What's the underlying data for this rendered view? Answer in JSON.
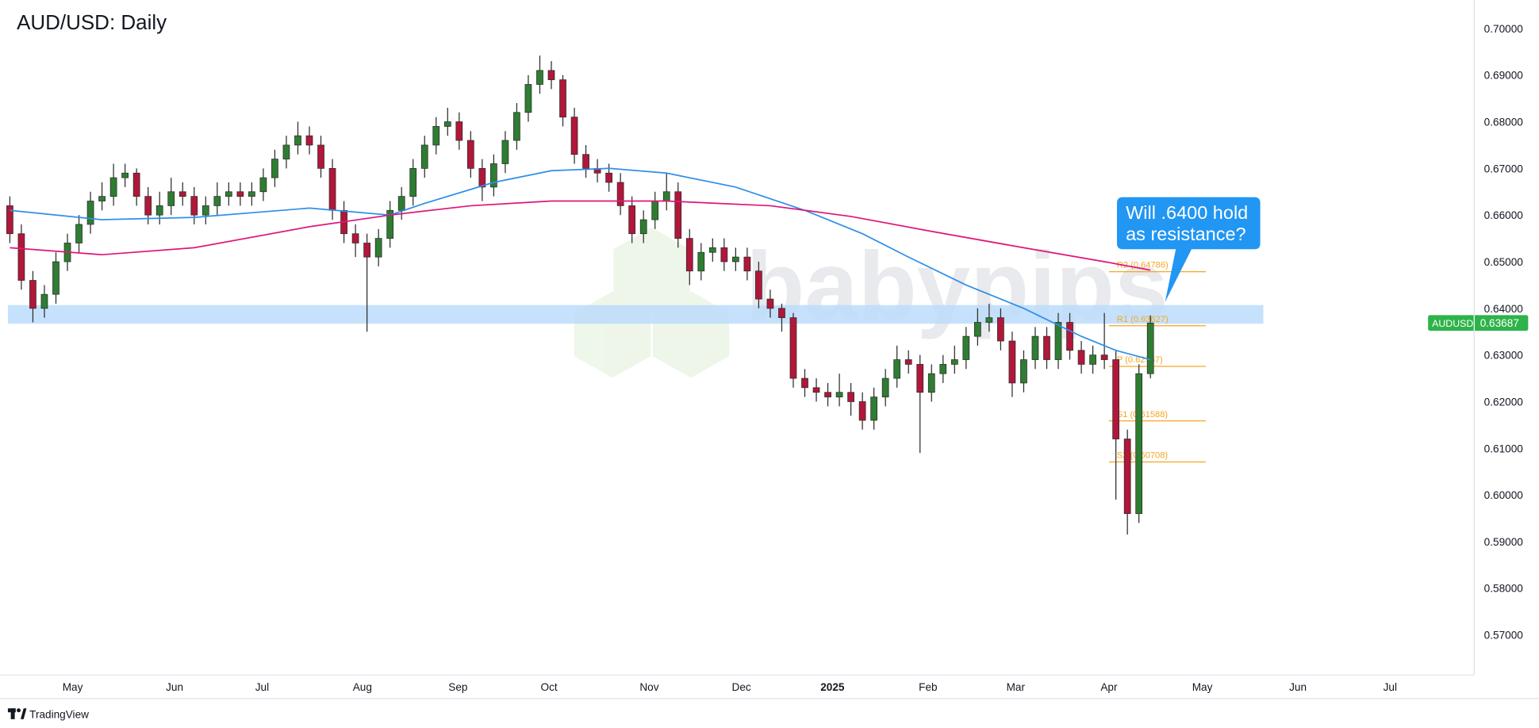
{
  "chart_data": {
    "type": "candlestick",
    "title": "AUD/USD: Daily",
    "colors": {
      "up": "#2e7d32",
      "down": "#b0173a",
      "wick": "#2b2b2b"
    },
    "open": [
      0.662,
      0.656,
      0.646,
      0.64,
      0.643,
      0.65,
      0.654,
      0.658,
      0.663,
      0.664,
      0.668,
      0.669,
      0.664,
      0.66,
      0.662,
      0.665,
      0.664,
      0.66,
      0.662,
      0.664,
      0.665,
      0.664,
      0.665,
      0.668,
      0.672,
      0.675,
      0.677,
      0.675,
      0.67,
      0.661,
      0.656,
      0.654,
      0.651,
      0.655,
      0.661,
      0.664,
      0.67,
      0.675,
      0.679,
      0.68,
      0.676,
      0.67,
      0.666,
      0.671,
      0.676,
      0.682,
      0.688,
      0.691,
      0.689,
      0.681,
      0.673,
      0.67,
      0.669,
      0.667,
      0.662,
      0.656,
      0.659,
      0.663,
      0.665,
      0.655,
      0.648,
      0.652,
      0.653,
      0.65,
      0.651,
      0.648,
      0.642,
      0.64,
      0.638,
      0.625,
      0.623,
      0.622,
      0.621,
      0.622,
      0.62,
      0.616,
      0.621,
      0.625,
      0.629,
      0.628,
      0.622,
      0.626,
      0.628,
      0.629,
      0.634,
      0.637,
      0.638,
      0.633,
      0.624,
      0.629,
      0.634,
      0.629,
      0.637,
      0.631,
      0.628,
      0.63,
      0.629,
      0.612,
      0.596,
      0.626
    ],
    "high": [
      0.664,
      0.658,
      0.648,
      0.645,
      0.652,
      0.656,
      0.66,
      0.665,
      0.667,
      0.671,
      0.671,
      0.67,
      0.666,
      0.665,
      0.668,
      0.667,
      0.666,
      0.664,
      0.667,
      0.667,
      0.667,
      0.667,
      0.67,
      0.674,
      0.677,
      0.68,
      0.679,
      0.677,
      0.672,
      0.663,
      0.658,
      0.656,
      0.657,
      0.663,
      0.666,
      0.672,
      0.677,
      0.681,
      0.683,
      0.682,
      0.678,
      0.672,
      0.673,
      0.678,
      0.684,
      0.69,
      0.6942,
      0.693,
      0.69,
      0.683,
      0.675,
      0.672,
      0.671,
      0.669,
      0.664,
      0.661,
      0.665,
      0.669,
      0.667,
      0.657,
      0.654,
      0.655,
      0.655,
      0.653,
      0.653,
      0.65,
      0.644,
      0.641,
      0.639,
      0.627,
      0.625,
      0.624,
      0.626,
      0.624,
      0.622,
      0.623,
      0.627,
      0.632,
      0.631,
      0.63,
      0.628,
      0.63,
      0.632,
      0.636,
      0.64,
      0.641,
      0.64,
      0.635,
      0.631,
      0.636,
      0.636,
      0.639,
      0.639,
      0.633,
      0.632,
      0.639,
      0.631,
      0.614,
      0.628,
      0.6385
    ],
    "low": [
      0.654,
      0.644,
      0.637,
      0.638,
      0.641,
      0.648,
      0.652,
      0.656,
      0.661,
      0.662,
      0.666,
      0.662,
      0.658,
      0.658,
      0.66,
      0.662,
      0.658,
      0.658,
      0.66,
      0.662,
      0.662,
      0.662,
      0.663,
      0.666,
      0.67,
      0.673,
      0.673,
      0.668,
      0.659,
      0.654,
      0.651,
      0.635,
      0.649,
      0.653,
      0.659,
      0.662,
      0.668,
      0.673,
      0.677,
      0.674,
      0.668,
      0.663,
      0.664,
      0.669,
      0.674,
      0.68,
      0.686,
      0.687,
      0.679,
      0.671,
      0.668,
      0.667,
      0.665,
      0.66,
      0.654,
      0.654,
      0.657,
      0.661,
      0.653,
      0.645,
      0.646,
      0.65,
      0.648,
      0.648,
      0.646,
      0.64,
      0.638,
      0.635,
      0.623,
      0.621,
      0.62,
      0.619,
      0.619,
      0.617,
      0.614,
      0.614,
      0.619,
      0.623,
      0.626,
      0.609,
      0.62,
      0.624,
      0.626,
      0.627,
      0.632,
      0.635,
      0.631,
      0.621,
      0.622,
      0.627,
      0.627,
      0.627,
      0.629,
      0.626,
      0.626,
      0.627,
      0.599,
      0.5915,
      0.594,
      0.625
    ],
    "close": [
      0.656,
      0.646,
      0.64,
      0.643,
      0.65,
      0.654,
      0.658,
      0.663,
      0.664,
      0.668,
      0.669,
      0.664,
      0.66,
      0.662,
      0.665,
      0.664,
      0.66,
      0.662,
      0.664,
      0.665,
      0.664,
      0.665,
      0.668,
      0.672,
      0.675,
      0.677,
      0.675,
      0.67,
      0.661,
      0.656,
      0.654,
      0.651,
      0.655,
      0.661,
      0.664,
      0.67,
      0.675,
      0.679,
      0.68,
      0.676,
      0.67,
      0.666,
      0.671,
      0.676,
      0.682,
      0.688,
      0.691,
      0.689,
      0.681,
      0.673,
      0.67,
      0.669,
      0.667,
      0.662,
      0.656,
      0.659,
      0.663,
      0.665,
      0.655,
      0.648,
      0.652,
      0.653,
      0.65,
      0.651,
      0.648,
      0.642,
      0.64,
      0.638,
      0.625,
      0.623,
      0.622,
      0.621,
      0.622,
      0.62,
      0.616,
      0.621,
      0.625,
      0.629,
      0.628,
      0.622,
      0.626,
      0.628,
      0.629,
      0.634,
      0.637,
      0.638,
      0.633,
      0.624,
      0.629,
      0.634,
      0.629,
      0.637,
      0.631,
      0.628,
      0.63,
      0.629,
      0.612,
      0.596,
      0.626,
      0.63687
    ],
    "moving_averages": [
      {
        "color": "#2f8fe8",
        "x": [
          0,
          8,
          16,
          26,
          33,
          36,
          42,
          47,
          52,
          57,
          63,
          69,
          74,
          78,
          83,
          88,
          93,
          96,
          99
        ],
        "values": [
          0.661,
          0.659,
          0.6595,
          0.6615,
          0.66,
          0.6625,
          0.667,
          0.6695,
          0.67,
          0.669,
          0.666,
          0.661,
          0.656,
          0.651,
          0.645,
          0.64,
          0.634,
          0.631,
          0.629
        ]
      },
      {
        "color": "#e0157a",
        "x": [
          0,
          8,
          16,
          26,
          33,
          40,
          47,
          57,
          66,
          73,
          80,
          88,
          95,
          99
        ],
        "values": [
          0.653,
          0.6515,
          0.653,
          0.6575,
          0.66,
          0.662,
          0.663,
          0.663,
          0.662,
          0.6597,
          0.6565,
          0.653,
          0.65,
          0.6482
        ]
      }
    ],
    "zone": {
      "color": "#bcdcfa",
      "x": [
        -0.17,
        108.8
      ],
      "y": [
        0.6367,
        0.6407
      ]
    },
    "pivots": {
      "color": "#f5a623",
      "x": [
        95.4,
        103.8
      ],
      "levels": [
        {
          "label": "R2 (0.64786)",
          "value": 0.64786
        },
        {
          "label": "R1 (0.63627)",
          "value": 0.63627
        },
        {
          "label": "P (0.62757)",
          "value": 0.62757
        },
        {
          "label": "S1 (0.61588)",
          "value": 0.61588
        },
        {
          "label": "S2 (0.60708)",
          "value": 0.60708
        }
      ]
    },
    "annotation": {
      "lines": [
        "Will .6400 hold",
        "as resistance?"
      ],
      "color": "#2196f3"
    },
    "last_price": {
      "symbol": "AUDUSD",
      "value": 0.63687,
      "label": "0.63687",
      "color": "#2db34a"
    },
    "watermark": "babypips",
    "footer": "TradingView",
    "xlim": [
      -0.17,
      127.1
    ],
    "xticks": [
      {
        "value": 5.45,
        "label": "May"
      },
      {
        "value": 14.3,
        "label": "Jun"
      },
      {
        "value": 21.9,
        "label": "Jul"
      },
      {
        "value": 30.6,
        "label": "Aug"
      },
      {
        "value": 38.9,
        "label": "Sep"
      },
      {
        "value": 46.8,
        "label": "Oct"
      },
      {
        "value": 55.5,
        "label": "Nov"
      },
      {
        "value": 63.5,
        "label": "Dec"
      },
      {
        "value": 71.4,
        "label": "2025",
        "bold": true
      },
      {
        "value": 79.7,
        "label": "Feb"
      },
      {
        "value": 87.3,
        "label": "Mar"
      },
      {
        "value": 95.4,
        "label": "Apr"
      },
      {
        "value": 103.5,
        "label": "May"
      },
      {
        "value": 111.8,
        "label": "Jun"
      },
      {
        "value": 119.8,
        "label": "Jul"
      }
    ],
    "ylim": [
      0.5614,
      0.7061
    ],
    "yticks": [
      {
        "value": 0.57,
        "label": "0.57000"
      },
      {
        "value": 0.58,
        "label": "0.58000"
      },
      {
        "value": 0.59,
        "label": "0.59000"
      },
      {
        "value": 0.6,
        "label": "0.60000"
      },
      {
        "value": 0.61,
        "label": "0.61000"
      },
      {
        "value": 0.62,
        "label": "0.62000"
      },
      {
        "value": 0.63,
        "label": "0.63000"
      },
      {
        "value": 0.64,
        "label": "0.64000"
      },
      {
        "value": 0.65,
        "label": "0.65000"
      },
      {
        "value": 0.66,
        "label": "0.66000"
      },
      {
        "value": 0.67,
        "label": "0.67000"
      },
      {
        "value": 0.68,
        "label": "0.68000"
      },
      {
        "value": 0.69,
        "label": "0.69000"
      },
      {
        "value": 0.7,
        "label": "0.70000"
      }
    ],
    "grid": false
  }
}
